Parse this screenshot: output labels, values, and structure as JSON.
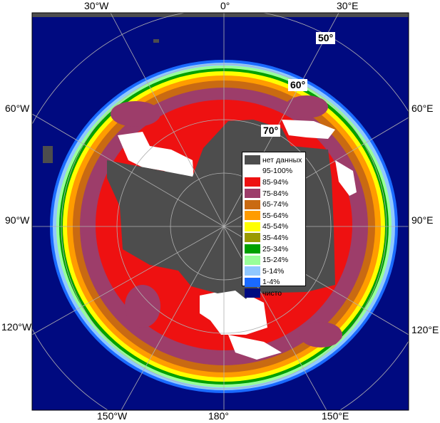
{
  "map": {
    "colors": {
      "ocean": "#000a80",
      "land": "#4d4d4d",
      "ice_95_100": "#ffffff",
      "ice_85_94": "#ee1111",
      "ice_75_84": "#9d3d6a",
      "ice_65_74": "#c96a12",
      "ice_55_64": "#ff9c00",
      "ice_45_54": "#ffff00",
      "ice_35_44": "#9a9a00",
      "ice_25_34": "#00a000",
      "ice_15_24": "#99ff99",
      "ice_5_14": "#90c8ff",
      "ice_1_4": "#1a6aff",
      "grid": "#b0b0b0"
    },
    "longitude_labels": {
      "lon_30w_top": "30°W",
      "lon_0_top": "0°",
      "lon_30e_top": "30°E",
      "lon_60w": "60°W",
      "lon_60e": "60°E",
      "lon_90w": "90°W",
      "lon_90e": "90°E",
      "lon_120w": "120°W",
      "lon_120e": "120°E",
      "lon_150w": "150°W",
      "lon_180": "180°",
      "lon_150e": "150°E"
    },
    "latitude_labels": {
      "lat_50": "50°",
      "lat_60": "60°",
      "lat_70": "70°"
    }
  },
  "legend": {
    "items": [
      {
        "label": "нет данных",
        "color": "#4d4d4d"
      },
      {
        "label": "95-100%",
        "color": "#ffffff"
      },
      {
        "label": "85-94%",
        "color": "#ee1111"
      },
      {
        "label": "75-84%",
        "color": "#9d3d6a"
      },
      {
        "label": "65-74%",
        "color": "#c96a12"
      },
      {
        "label": "55-64%",
        "color": "#ff9c00"
      },
      {
        "label": "45-54%",
        "color": "#ffff00"
      },
      {
        "label": "35-44%",
        "color": "#9a9a00"
      },
      {
        "label": "25-34%",
        "color": "#00a000"
      },
      {
        "label": "15-24%",
        "color": "#99ff99"
      },
      {
        "label": "5-14%",
        "color": "#90c8ff"
      },
      {
        "label": "1-4%",
        "color": "#1a6aff"
      },
      {
        "label": "чисто",
        "color": "#000a80"
      }
    ]
  }
}
